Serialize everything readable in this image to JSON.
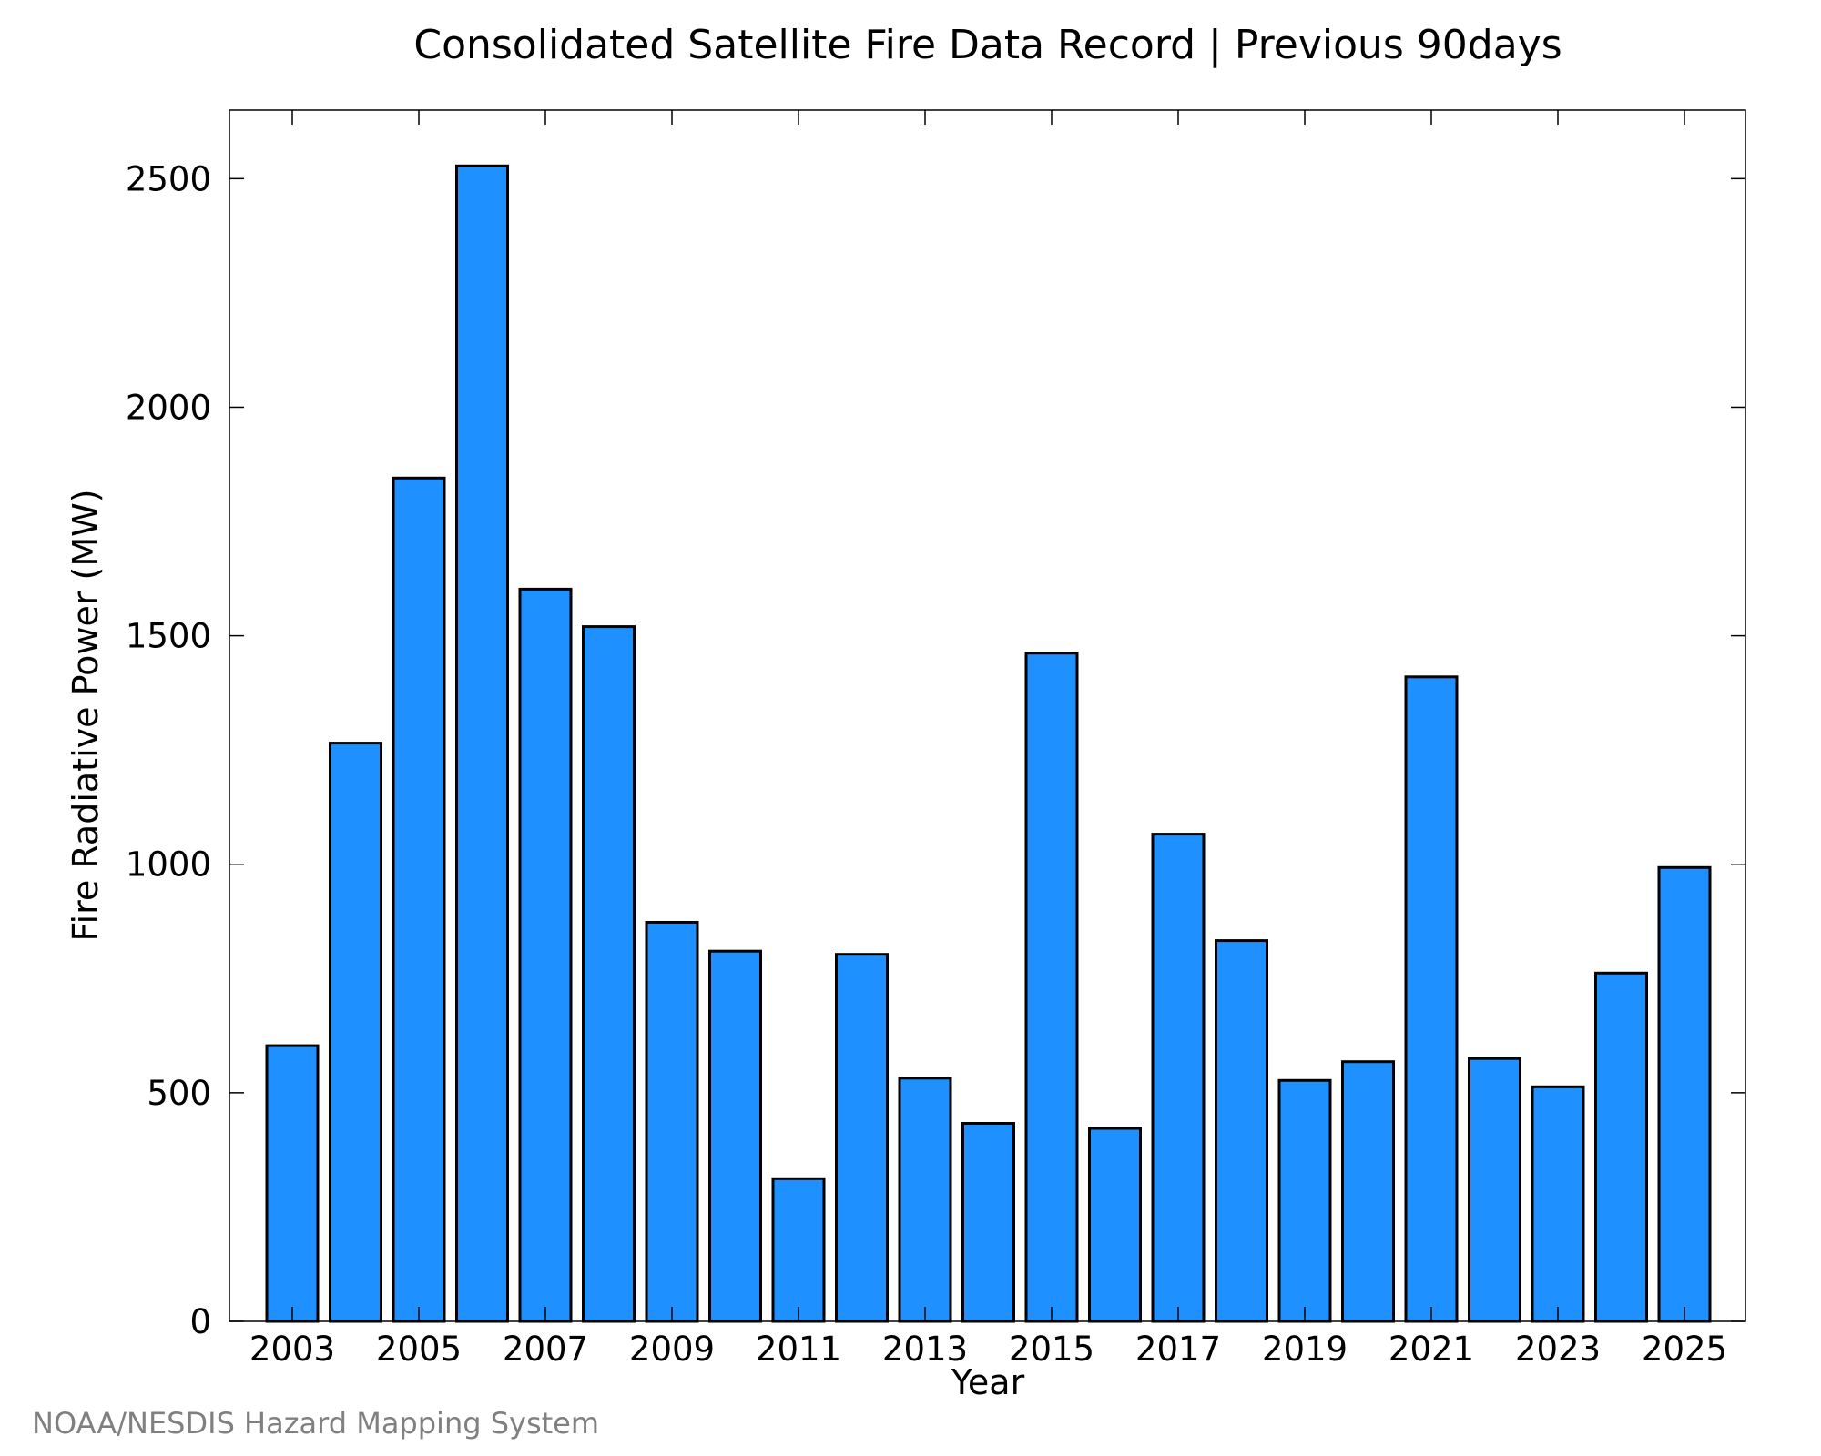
{
  "chart_data": {
    "type": "bar",
    "title": "Consolidated Satellite Fire Data Record | Previous 90days",
    "xlabel": "Year",
    "ylabel": "Fire Radiative Power (MW)",
    "source": "NOAA/NESDIS Hazard Mapping System",
    "categories": [
      "2003",
      "2004",
      "2005",
      "2006",
      "2007",
      "2008",
      "2009",
      "2010",
      "2011",
      "2012",
      "2013",
      "2014",
      "2015",
      "2016",
      "2017",
      "2018",
      "2019",
      "2020",
      "2021",
      "2022",
      "2023",
      "2024",
      "2025"
    ],
    "values": [
      603,
      1265,
      1845,
      2528,
      1602,
      1520,
      873,
      810,
      312,
      803,
      532,
      433,
      1462,
      422,
      1066,
      833,
      527,
      568,
      1410,
      575,
      513,
      762,
      993
    ],
    "x_tick_labels": [
      "2003",
      "2005",
      "2007",
      "2009",
      "2011",
      "2013",
      "2015",
      "2017",
      "2019",
      "2021",
      "2023",
      "2025"
    ],
    "y_ticks": [
      0,
      500,
      1000,
      1500,
      2000,
      2500
    ],
    "ylim": [
      0,
      2650
    ],
    "grid": false,
    "colors": {
      "bar_fill": "#1e90ff",
      "bar_stroke": "#000000",
      "source_text": "#808080"
    }
  }
}
